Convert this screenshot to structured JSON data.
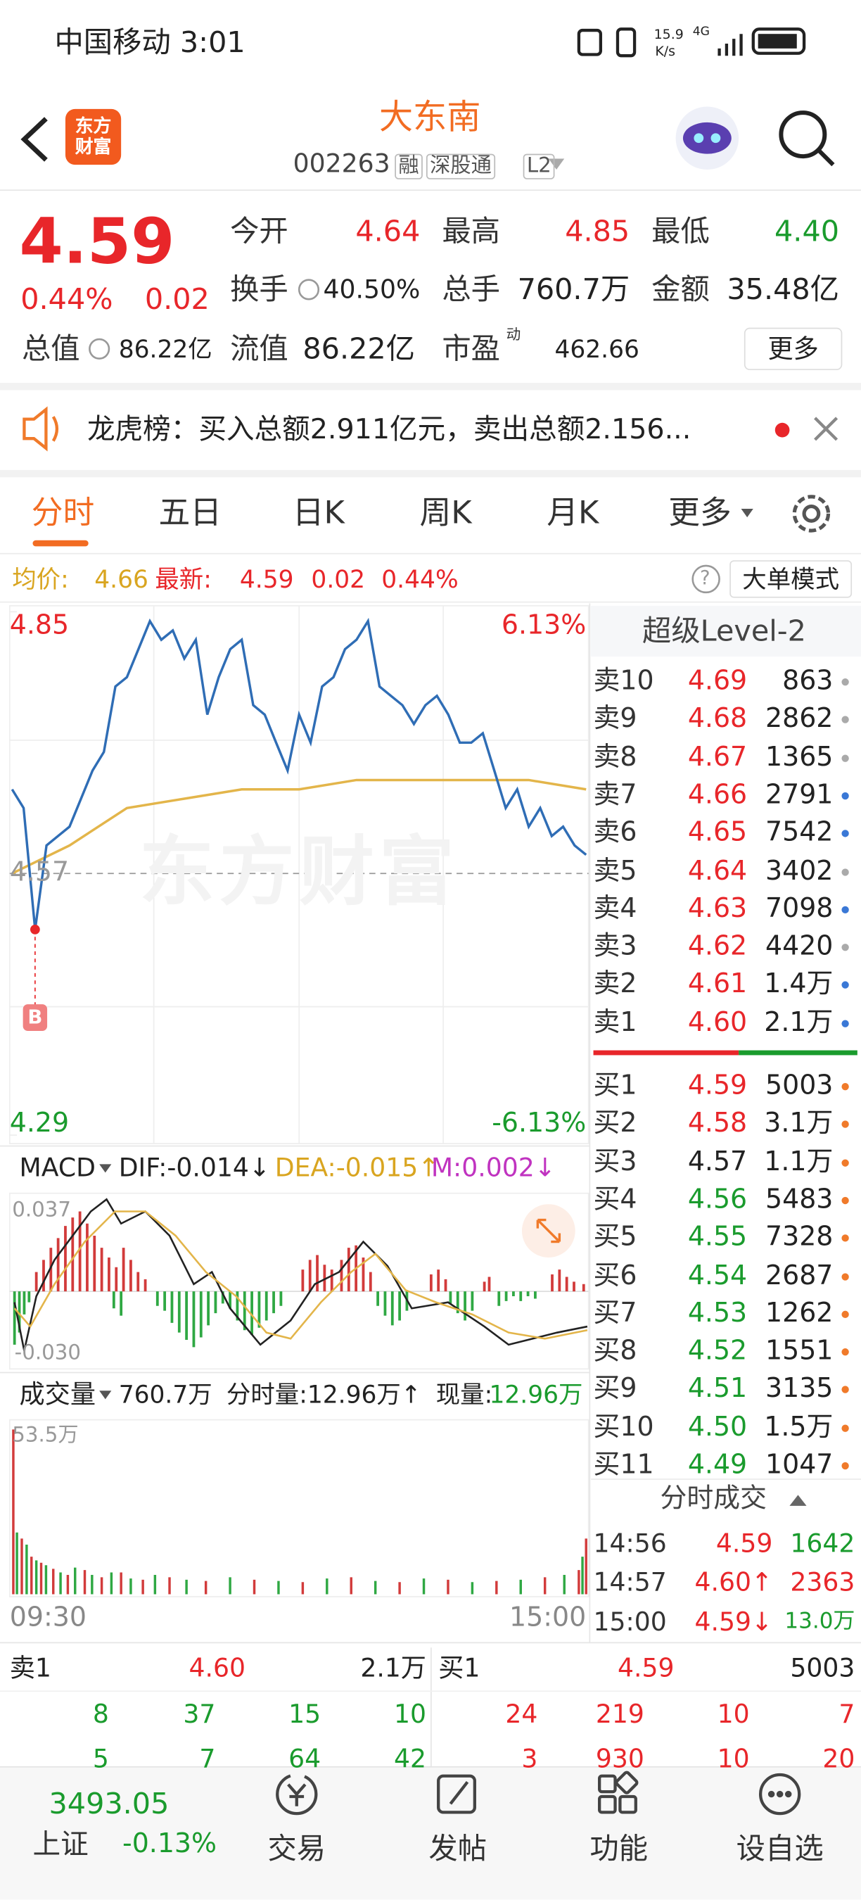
{
  "status_bar": {
    "carrier_time": "中国移动 3:01",
    "net_speed": "15.9",
    "net_unit": "K/s",
    "network": "4G"
  },
  "header": {
    "logo": "东方财富",
    "title": "大东南",
    "code": "002263",
    "tags": [
      "融",
      "深股通",
      "L2"
    ]
  },
  "quote": {
    "price": "4.59",
    "change_pct": "0.44%",
    "change": "0.02",
    "stats": [
      {
        "label": "今开",
        "value": "4.64"
      },
      {
        "label": "最高",
        "value": "4.85"
      },
      {
        "label": "最低",
        "value": "4.40"
      },
      {
        "label": "换手",
        "value": "40.50%"
      },
      {
        "label": "总手",
        "value": "760.7万"
      },
      {
        "label": "金额",
        "value": "35.48亿"
      },
      {
        "label": "总值",
        "value": "86.22亿"
      },
      {
        "label": "流值",
        "value": "86.22亿"
      },
      {
        "label": "市盈",
        "sup": "动",
        "value": "462.66"
      }
    ],
    "more": "更多"
  },
  "notice": "龙虎榜：买入总额2.911亿元，卖出总额2.156...",
  "tabs": [
    "分时",
    "五日",
    "日K",
    "周K",
    "月K",
    "更多"
  ],
  "info_line": {
    "avg_label": "均价:",
    "avg": "4.66",
    "last_label": "最新:",
    "last": "4.59",
    "change": "0.02",
    "change_pct": "0.44%",
    "mode_button": "大单模式"
  },
  "intraday": {
    "ylim": [
      4.29,
      4.85
    ],
    "yticks": [
      4.85,
      4.57,
      4.29
    ],
    "prev_close": 4.57,
    "pct_labels": [
      "6.13%",
      "-6.13%"
    ],
    "price_color": "#2f6db5",
    "avg_color": "#e3b54a",
    "price": [
      4.66,
      4.64,
      4.51,
      4.6,
      4.61,
      4.62,
      4.65,
      4.68,
      4.7,
      4.77,
      4.78,
      4.81,
      4.84,
      4.82,
      4.83,
      4.8,
      4.82,
      4.74,
      4.78,
      4.81,
      4.82,
      4.75,
      4.74,
      4.71,
      4.68,
      4.74,
      4.71,
      4.77,
      4.78,
      4.81,
      4.82,
      4.84,
      4.77,
      4.76,
      4.75,
      4.73,
      4.75,
      4.76,
      4.74,
      4.71,
      4.71,
      4.72,
      4.68,
      4.64,
      4.66,
      4.62,
      4.64,
      4.61,
      4.62,
      4.6,
      4.59
    ],
    "avg": [
      4.57,
      4.6,
      4.64,
      4.65,
      4.66,
      4.66,
      4.67,
      4.67,
      4.67,
      4.67,
      4.66
    ],
    "marker": "B",
    "watermark": "东方财富",
    "times": [
      "09:30",
      "15:00"
    ]
  },
  "macd": {
    "name": "MACD",
    "dif": "DIF:-0.014↓",
    "dea": "DEA:-0.015↑",
    "m": "M:0.002↓",
    "top": "0.037",
    "bottom": "-0.030"
  },
  "volume": {
    "name": "成交量",
    "total": "760.7万",
    "minute": "分时量:12.96万↑",
    "now_label": "现量:",
    "now": "12.96万",
    "top": "53.5万"
  },
  "level2": {
    "title": "超级Level-2",
    "sell": [
      {
        "label": "卖10",
        "price": "4.69",
        "volume": "863",
        "dot": "#aaaaaa"
      },
      {
        "label": "卖9",
        "price": "4.68",
        "volume": "2862",
        "dot": "#aaaaaa"
      },
      {
        "label": "卖8",
        "price": "4.67",
        "volume": "1365",
        "dot": "#aaaaaa"
      },
      {
        "label": "卖7",
        "price": "4.66",
        "volume": "2791",
        "dot": "#3a78d6"
      },
      {
        "label": "卖6",
        "price": "4.65",
        "volume": "7542",
        "dot": "#3a78d6"
      },
      {
        "label": "卖5",
        "price": "4.64",
        "volume": "3402",
        "dot": "#aaaaaa"
      },
      {
        "label": "卖4",
        "price": "4.63",
        "volume": "7098",
        "dot": "#3a78d6"
      },
      {
        "label": "卖3",
        "price": "4.62",
        "volume": "4420",
        "dot": "#aaaaaa"
      },
      {
        "label": "卖2",
        "price": "4.61",
        "volume": "1.4万",
        "dot": "#3a78d6"
      },
      {
        "label": "卖1",
        "price": "4.60",
        "volume": "2.1万",
        "dot": "#3a78d6"
      }
    ],
    "buy": [
      {
        "label": "买1",
        "price": "4.59",
        "volume": "5003",
        "dot": "#f07a2a"
      },
      {
        "label": "买2",
        "price": "4.58",
        "volume": "3.1万",
        "dot": "#f07a2a"
      },
      {
        "label": "买3",
        "price": "4.57",
        "volume": "1.1万",
        "dot": "#f07a2a"
      },
      {
        "label": "买4",
        "price": "4.56",
        "volume": "5483",
        "dot": "#f07a2a"
      },
      {
        "label": "买5",
        "price": "4.55",
        "volume": "7328",
        "dot": "#f07a2a"
      },
      {
        "label": "买6",
        "price": "4.54",
        "volume": "2687",
        "dot": "#f07a2a"
      },
      {
        "label": "买7",
        "price": "4.53",
        "volume": "1262",
        "dot": "#f07a2a"
      },
      {
        "label": "买8",
        "price": "4.52",
        "volume": "1551",
        "dot": "#f07a2a"
      },
      {
        "label": "买9",
        "price": "4.51",
        "volume": "3135",
        "dot": "#f07a2a"
      },
      {
        "label": "买10",
        "price": "4.50",
        "volume": "1.5万",
        "dot": "#f07a2a"
      },
      {
        "label": "买11",
        "price": "4.49",
        "volume": "1047",
        "dot": "#f07a2a"
      }
    ],
    "trades_title": "分时成交",
    "trades": [
      {
        "time": "14:56",
        "price": "4.59",
        "volume": "1642",
        "color": "#1a9b2d"
      },
      {
        "time": "14:57",
        "price": "4.60↑",
        "volume": "2363",
        "color": "#e8262a"
      },
      {
        "time": "15:00",
        "price": "4.59↓",
        "volume": "13.0万",
        "color": "#1a9b2d"
      }
    ]
  },
  "depth": {
    "sell": {
      "label": "卖1",
      "price": "4.60",
      "volume": "2.1万",
      "rows": [
        [
          "8",
          "37",
          "15",
          "10"
        ],
        [
          "5",
          "7",
          "64",
          "42"
        ]
      ]
    },
    "buy": {
      "label": "买1",
      "price": "4.59",
      "volume": "5003",
      "rows": [
        [
          "24",
          "219",
          "10",
          "7"
        ],
        [
          "3",
          "930",
          "10",
          "20"
        ]
      ]
    }
  },
  "nav": {
    "index_value": "3493.05",
    "index_name": "上证",
    "index_change": "-0.13%",
    "items": [
      "交易",
      "发帖",
      "功能",
      "设自选"
    ]
  }
}
